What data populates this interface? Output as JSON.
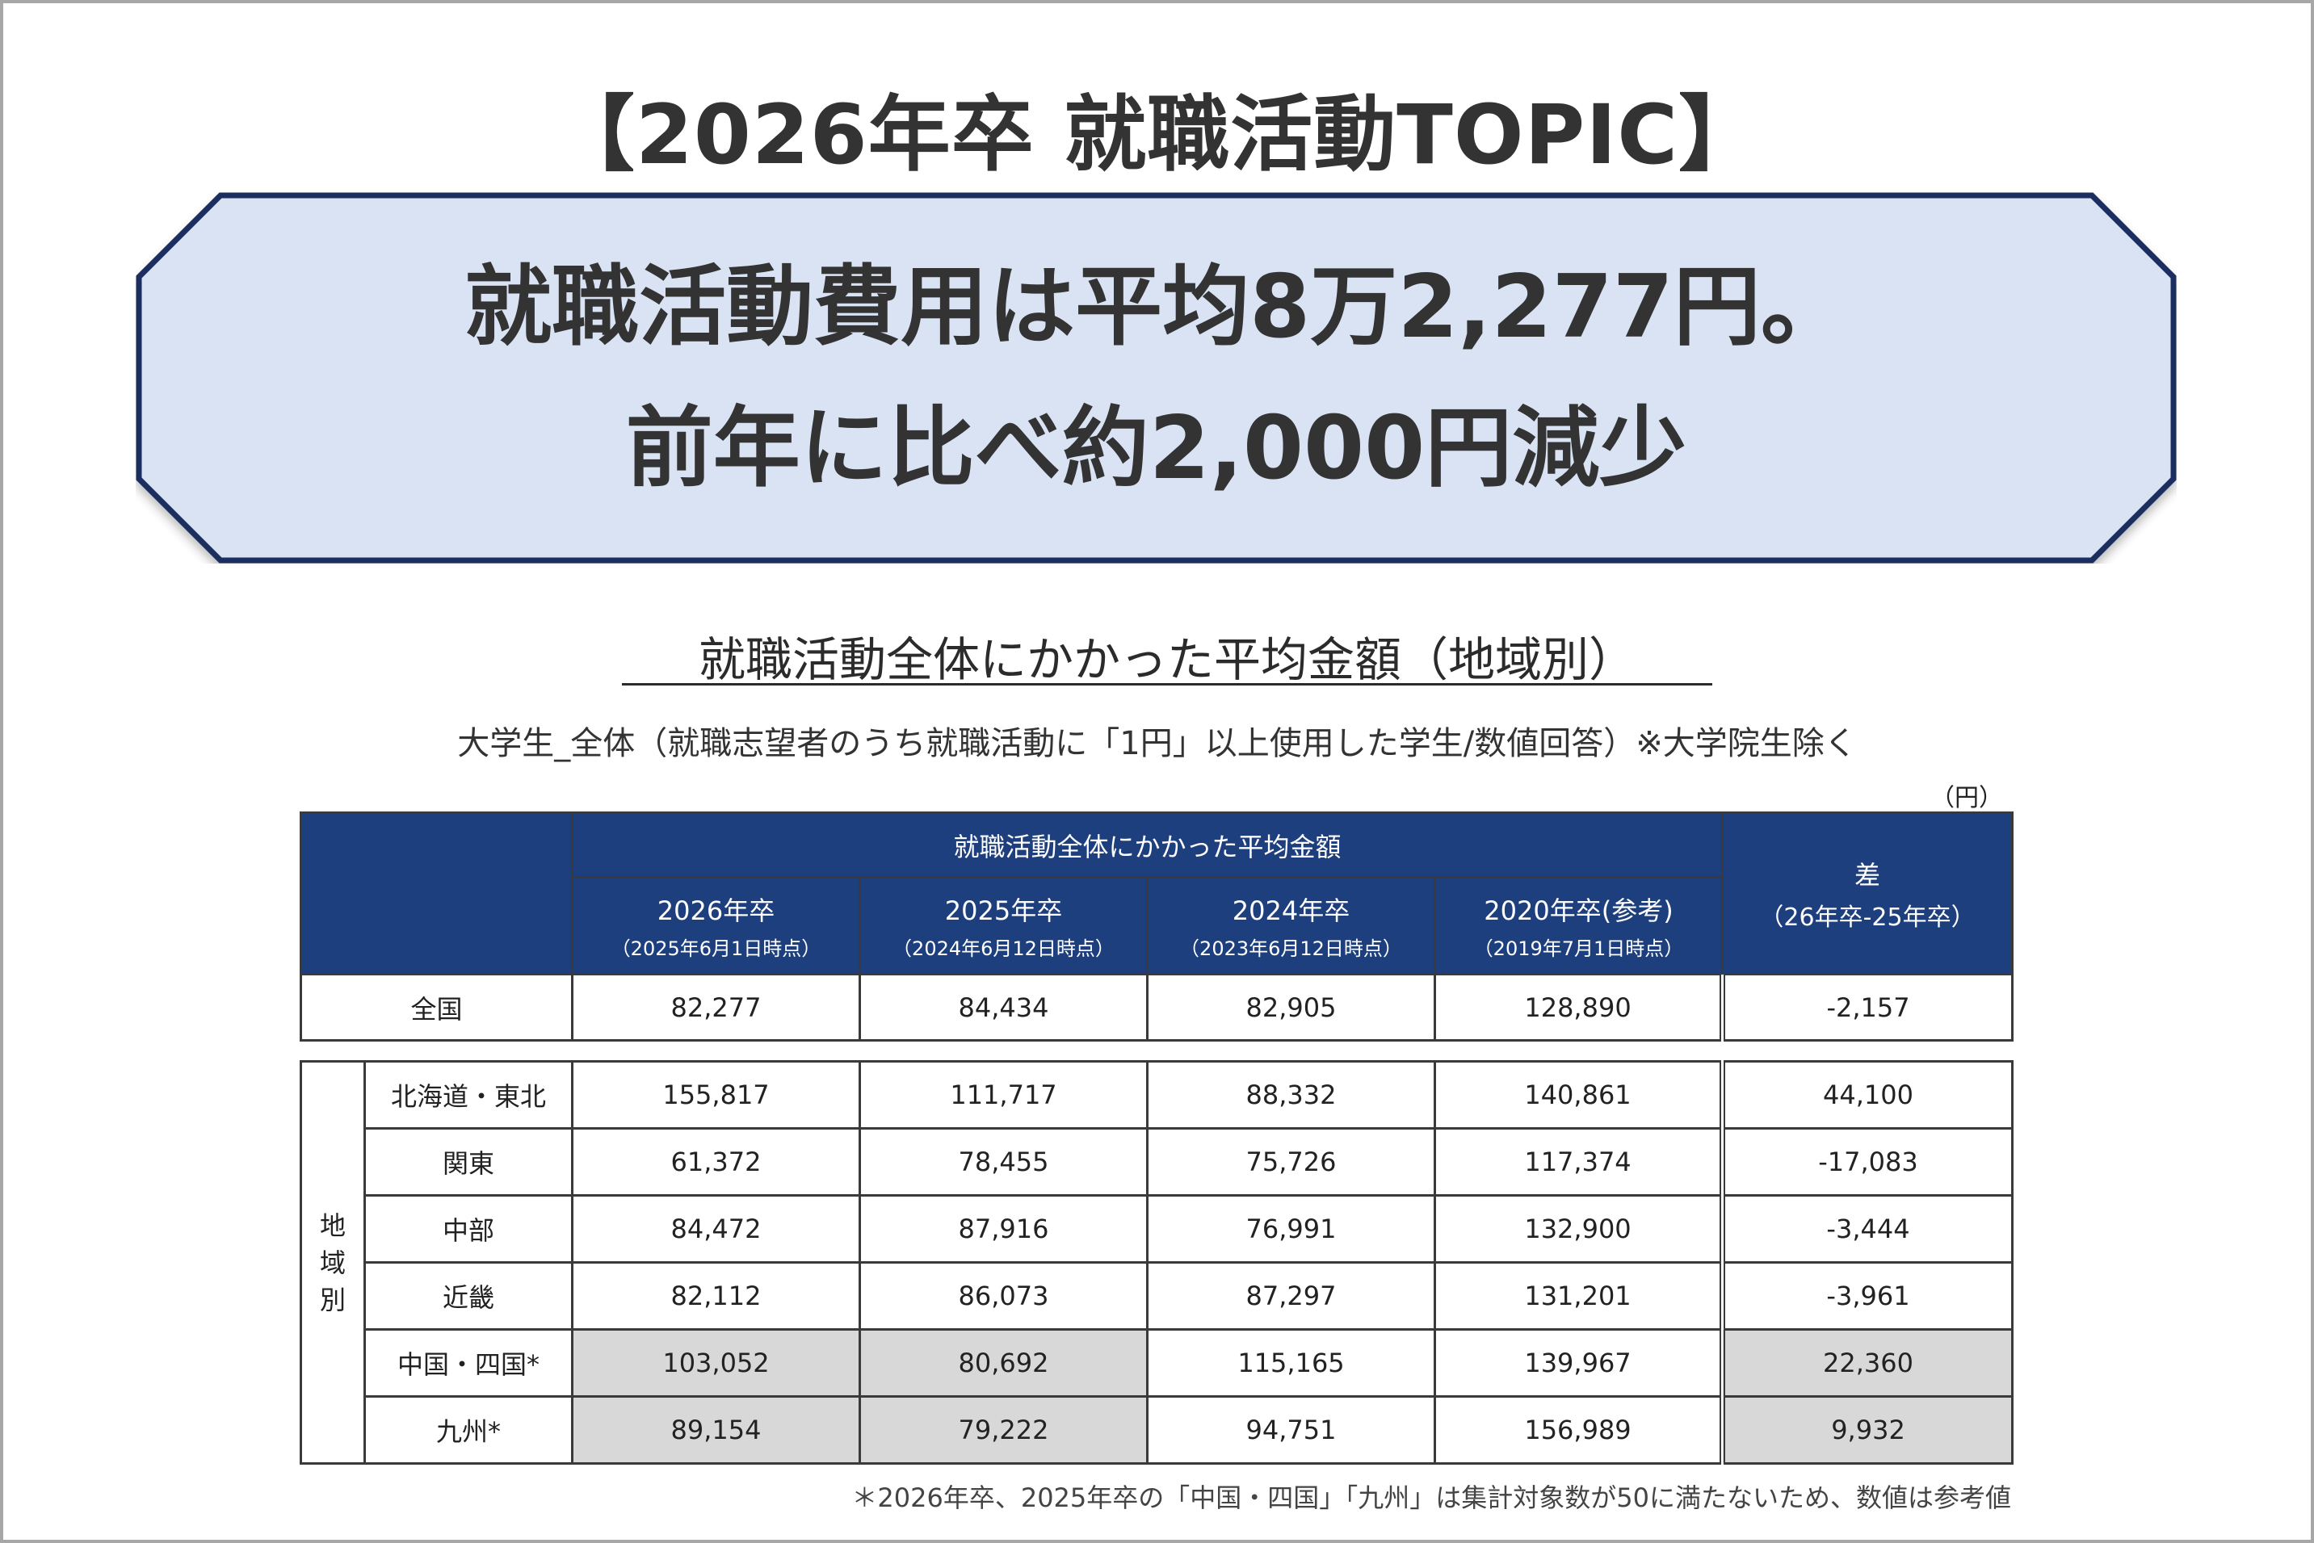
{
  "page": {
    "main_title": "【2026年卒 就職活動TOPIC】",
    "headline_line1": "就職活動費用は平均8万2,277円。",
    "headline_line2": "前年に比べ約2,000円減少",
    "section_title": "就職活動全体にかかった平均金額（地域別）",
    "sample_note": "大学生_全体（就職志望者のうち就職活動に「1円」以上使用した学生/数値回答）※大学院生除く",
    "unit": "（円）",
    "footnote": "＊2026年卒、2025年卒の「中国・四国」「九州」は集計対象数が50に満たないため、数値は参考値",
    "colors": {
      "header_bg": "#1e3f7e",
      "headline_bg": "#d9e3f4",
      "headline_border": "#1d2f5e",
      "reference_cell": "#d8d8d8"
    }
  },
  "chart_data": {
    "type": "table",
    "title": "就職活動全体にかかった平均金額（地域別）",
    "group_header": "就職活動全体にかかった平均金額",
    "columns": [
      {
        "label": "2026年卒",
        "sub": "（2025年6月1日時点）"
      },
      {
        "label": "2025年卒",
        "sub": "（2024年6月12日時点）"
      },
      {
        "label": "2024年卒",
        "sub": "（2023年6月12日時点）"
      },
      {
        "label": "2020年卒(参考)",
        "sub": "（2019年7月1日時点）"
      }
    ],
    "diff_header": {
      "label": "差",
      "sub": "（26年卒-25年卒）"
    },
    "national": {
      "label": "全国",
      "values": [
        "82,277",
        "84,434",
        "82,905",
        "128,890"
      ],
      "diff": "-2,157"
    },
    "region_group_label": [
      "地",
      "域",
      "別"
    ],
    "regions": [
      {
        "label": "北海道・東北",
        "values": [
          "155,817",
          "111,717",
          "88,332",
          "140,861"
        ],
        "diff": "44,100",
        "reference": false
      },
      {
        "label": "関東",
        "values": [
          "61,372",
          "78,455",
          "75,726",
          "117,374"
        ],
        "diff": "-17,083",
        "reference": false
      },
      {
        "label": "中部",
        "values": [
          "84,472",
          "87,916",
          "76,991",
          "132,900"
        ],
        "diff": "-3,444",
        "reference": false
      },
      {
        "label": "近畿",
        "values": [
          "82,112",
          "86,073",
          "87,297",
          "131,201"
        ],
        "diff": "-3,961",
        "reference": false
      },
      {
        "label": "中国・四国*",
        "values": [
          "103,052",
          "80,692",
          "115,165",
          "139,967"
        ],
        "diff": "22,360",
        "reference": true
      },
      {
        "label": "九州*",
        "values": [
          "89,154",
          "79,222",
          "94,751",
          "156,989"
        ],
        "diff": "9,932",
        "reference": true
      }
    ]
  }
}
